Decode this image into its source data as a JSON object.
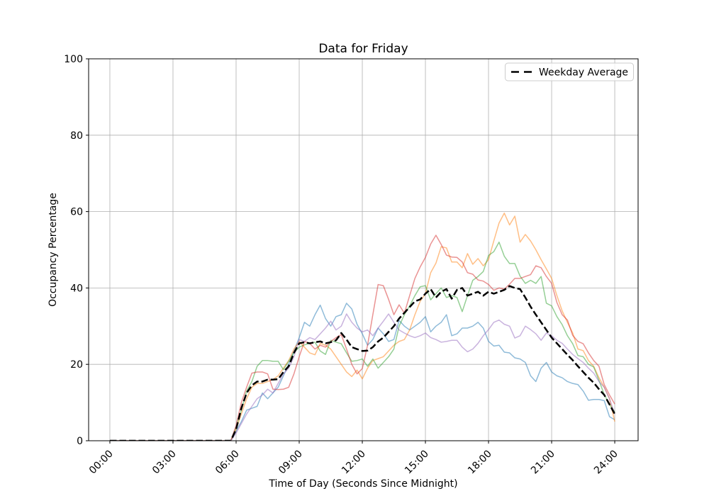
{
  "title": "Data for Friday",
  "xlabel": "Time of Day (Seconds Since Midnight)",
  "ylabel": "Occupancy Percentage",
  "legend": {
    "position": "upper right",
    "entries": [
      "Weekday Average"
    ]
  },
  "chart_data": {
    "type": "line",
    "title": "Data for Friday",
    "xlabel": "Time of Day (Seconds Since Midnight)",
    "ylabel": "Occupancy Percentage",
    "grid": true,
    "grid_color": "#b0b0b0",
    "xlim_hours": [
      -1.01,
      25.11
    ],
    "ylim": [
      0,
      100
    ],
    "x_tick_hours": [
      0,
      3,
      6,
      9,
      12,
      15,
      18,
      21,
      24
    ],
    "x_tick_labels": [
      "00:00",
      "03:00",
      "06:00",
      "09:00",
      "12:00",
      "15:00",
      "18:00",
      "21:00",
      "24:00"
    ],
    "y_ticks": [
      0,
      20,
      40,
      60,
      80,
      100
    ],
    "x_start_hour": 0,
    "x_step_hours": 0.25,
    "n_points": 97,
    "series": [
      {
        "name": "line-1",
        "color": "#1f77b4",
        "alpha": 0.5,
        "style": "solid",
        "width": 1.5,
        "values": [
          0,
          0,
          0,
          0,
          0,
          0,
          0,
          0,
          0,
          0,
          0,
          0,
          0,
          0,
          0,
          0,
          0,
          0,
          0,
          0,
          0,
          0,
          0,
          0,
          2.5,
          5,
          8,
          8.5,
          9,
          12.5,
          11,
          12.5,
          14,
          17,
          20,
          23.5,
          27,
          31,
          30,
          33,
          35.5,
          32,
          30,
          32.5,
          33,
          36,
          34.5,
          30.5,
          28,
          25,
          26.5,
          29.5,
          28,
          26,
          26.5,
          31.5,
          30,
          29,
          30,
          31,
          32.5,
          28.5,
          30,
          31,
          33,
          27.5,
          28,
          29.5,
          29.5,
          30,
          31,
          29.5,
          26,
          24.8,
          25,
          23.2,
          23,
          21.7,
          21.4,
          20.5,
          17,
          15.5,
          19,
          20.5,
          18,
          17,
          16.5,
          15.5,
          15,
          14.7,
          13,
          10.6,
          10.8,
          10.8,
          10.5,
          6.3,
          5.5
        ]
      },
      {
        "name": "line-2",
        "color": "#ff7f0e",
        "alpha": 0.5,
        "style": "solid",
        "width": 1.5,
        "values": [
          0,
          0,
          0,
          0,
          0,
          0,
          0,
          0,
          0,
          0,
          0,
          0,
          0,
          0,
          0,
          0,
          0,
          0,
          0,
          0,
          0,
          0,
          0,
          0,
          3,
          7,
          11,
          14,
          15,
          15,
          15.5,
          16,
          17,
          19,
          21,
          24,
          26,
          24.5,
          23,
          22.5,
          25.5,
          25,
          24,
          22,
          20,
          18,
          16.8,
          18.5,
          16.2,
          19,
          21,
          21.5,
          22,
          23.5,
          25,
          26,
          26.5,
          29,
          33,
          36.5,
          38.5,
          44,
          46.5,
          50.8,
          50.5,
          46.8,
          46.8,
          45.3,
          49,
          46.2,
          47.7,
          45.8,
          47.4,
          52.3,
          57,
          59.6,
          56.5,
          58.8,
          52,
          54,
          52.3,
          50,
          47.4,
          45,
          42.5,
          38,
          34,
          31,
          28.2,
          24,
          23.6,
          21,
          19.5,
          16.5,
          14,
          11,
          5
        ]
      },
      {
        "name": "line-3",
        "color": "#2ca02c",
        "alpha": 0.5,
        "style": "solid",
        "width": 1.5,
        "values": [
          0,
          0,
          0,
          0,
          0,
          0,
          0,
          0,
          0,
          0,
          0,
          0,
          0,
          0,
          0,
          0,
          0,
          0,
          0,
          0,
          0,
          0,
          0,
          0,
          3.5,
          8,
          13,
          15.5,
          19.5,
          21,
          21,
          20.8,
          20.8,
          18.6,
          20.8,
          23,
          24.5,
          25.1,
          25.5,
          25.8,
          23.5,
          22.6,
          26.3,
          25.8,
          25.4,
          23,
          20.8,
          21,
          21.4,
          19.5,
          21.4,
          19,
          20.5,
          22,
          24,
          30,
          33,
          35.3,
          38,
          40.3,
          40.6,
          36.9,
          38.5,
          40,
          37.5,
          38,
          37.5,
          33.8,
          38,
          42,
          43,
          44.3,
          48.5,
          49.5,
          52,
          48.3,
          46.4,
          46.4,
          43.1,
          41.2,
          42,
          41.2,
          43,
          36,
          35.3,
          32.5,
          30.4,
          27.5,
          25.4,
          22.3,
          22,
          20,
          19.3,
          15.8,
          12.1,
          9.5,
          7.5
        ]
      },
      {
        "name": "line-4",
        "color": "#d62728",
        "alpha": 0.5,
        "style": "solid",
        "width": 1.5,
        "values": [
          0,
          0,
          0,
          0,
          0,
          0,
          0,
          0,
          0,
          0,
          0,
          0,
          0,
          0,
          0,
          0,
          0,
          0,
          0,
          0,
          0,
          0,
          0,
          0,
          4,
          10,
          14,
          17.7,
          18,
          18,
          17.5,
          13.5,
          13.4,
          13.5,
          14,
          17.5,
          22,
          26,
          25.5,
          24,
          25,
          24.5,
          26,
          27,
          27.8,
          24,
          20,
          17.5,
          18.9,
          25,
          33,
          40.9,
          40.6,
          37,
          33,
          35.6,
          33.4,
          38,
          42.5,
          45.5,
          48,
          51.5,
          53.8,
          51.4,
          48.6,
          48.1,
          48,
          46.8,
          44,
          43.6,
          42.1,
          41.8,
          40.9,
          39.4,
          40,
          39.7,
          41,
          42.5,
          42.5,
          43,
          43.5,
          45.8,
          45.3,
          43,
          41.2,
          36.2,
          33,
          31.6,
          27.6,
          26,
          25.4,
          23,
          21,
          19.5,
          14.7,
          12,
          9.6
        ]
      },
      {
        "name": "line-5",
        "color": "#9467bd",
        "alpha": 0.5,
        "style": "solid",
        "width": 1.5,
        "values": [
          0,
          0,
          0,
          0,
          0,
          0,
          0,
          0,
          0,
          0,
          0,
          0,
          0,
          0,
          0,
          0,
          0,
          0,
          0,
          0,
          0,
          0,
          0,
          0,
          2,
          4.5,
          7,
          9,
          11,
          12,
          13.5,
          12.5,
          15,
          17.5,
          19,
          22,
          26.5,
          26,
          27,
          26.5,
          28,
          29.5,
          31.3,
          29,
          30,
          33.2,
          31,
          29.5,
          28.5,
          29,
          27.5,
          29.5,
          31.3,
          33.2,
          31,
          29,
          28.2,
          27.5,
          27,
          27.5,
          28.2,
          27,
          26.5,
          25.8,
          26,
          26.3,
          26.3,
          24.5,
          23.3,
          24,
          25.5,
          27.5,
          29.1,
          31,
          31.6,
          30.5,
          30,
          26.9,
          27.5,
          30,
          29.1,
          28,
          26.3,
          28.2,
          27.5,
          26.3,
          25.5,
          24,
          22.6,
          21.5,
          20.5,
          19,
          17.7,
          15.5,
          14,
          11,
          7
        ]
      },
      {
        "name": "Weekday Average",
        "color": "#000000",
        "alpha": 1,
        "style": "dashed",
        "width": 2.5,
        "values": [
          0,
          0,
          0,
          0,
          0,
          0,
          0,
          0,
          0,
          0,
          0,
          0,
          0,
          0,
          0,
          0,
          0,
          0,
          0,
          0,
          0,
          0,
          0,
          0,
          3,
          8.5,
          12.5,
          14.5,
          15.5,
          15.5,
          16,
          16,
          16.1,
          18,
          19.5,
          23,
          25.5,
          25.8,
          25.5,
          25.8,
          26,
          25.5,
          25.8,
          26.3,
          28.2,
          26.5,
          24.5,
          24,
          23.5,
          23.6,
          24.5,
          26,
          27,
          28.5,
          30,
          32,
          33.5,
          35,
          36.5,
          37,
          38.5,
          39.7,
          37.5,
          39,
          39.7,
          37.2,
          39.5,
          40,
          38,
          38.5,
          39,
          38,
          39,
          38.5,
          39,
          39.5,
          40.5,
          40,
          39.7,
          37.5,
          35.1,
          33,
          31,
          29,
          27,
          25.5,
          24,
          22.5,
          21.1,
          19.5,
          18,
          16.5,
          15.2,
          13.5,
          12,
          9.5,
          7
        ]
      }
    ]
  }
}
